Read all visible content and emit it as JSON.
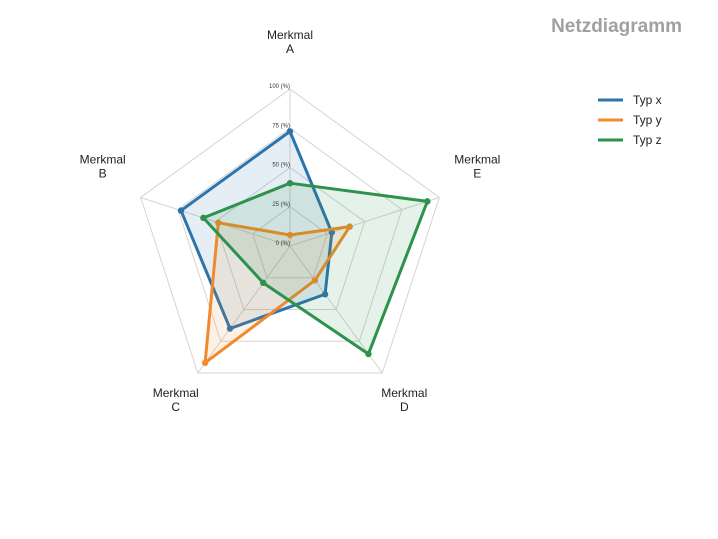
{
  "chart_data": {
    "type": "radar",
    "title": "Netzdiagramm",
    "categories": [
      [
        "Merkmal",
        "A"
      ],
      [
        "Merkmal",
        "B"
      ],
      [
        "Merkmal",
        "C"
      ],
      [
        "Merkmal",
        "D"
      ],
      [
        "Merkmal",
        "E"
      ]
    ],
    "ticks": [
      "0 (%)",
      "25 (%)",
      "50 (%)",
      "75 (%)",
      "100 (%)"
    ],
    "tick_values": [
      0,
      25,
      50,
      75,
      100
    ],
    "range": [
      0,
      100
    ],
    "grid": true,
    "legend_position": "top-right",
    "series": [
      {
        "name": "Typ x",
        "color": "#2c74ac",
        "values": [
          73,
          73,
          65,
          38,
          28
        ]
      },
      {
        "name": "Typ y",
        "color": "#f08a2c",
        "values": [
          7,
          48,
          92,
          27,
          40
        ]
      },
      {
        "name": "Typ z",
        "color": "#2c924c",
        "values": [
          40,
          58,
          29,
          85,
          92
        ]
      }
    ]
  }
}
